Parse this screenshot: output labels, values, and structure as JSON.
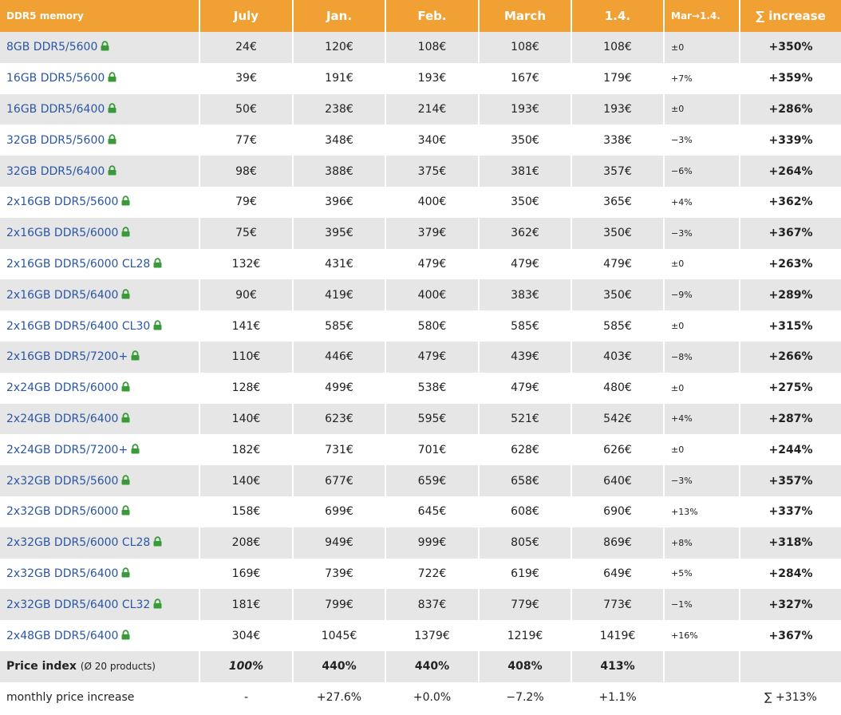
{
  "header": [
    "DDR5 memory",
    "July",
    "Jan.",
    "Feb.",
    "March",
    "1.4.",
    "Mar→1.4.",
    "∑ increase"
  ],
  "rows": [
    [
      "8GB DDR5/5600",
      "24€",
      "120€",
      "108€",
      "108€",
      "108€",
      "±0",
      "+350%"
    ],
    [
      "16GB DDR5/5600",
      "39€",
      "191€",
      "193€",
      "167€",
      "179€",
      "+7%",
      "+359%"
    ],
    [
      "16GB DDR5/6400",
      "50€",
      "238€",
      "214€",
      "193€",
      "193€",
      "±0",
      "+286%"
    ],
    [
      "32GB DDR5/5600",
      "77€",
      "348€",
      "340€",
      "350€",
      "338€",
      "−3%",
      "+339%"
    ],
    [
      "32GB DDR5/6400",
      "98€",
      "388€",
      "375€",
      "381€",
      "357€",
      "−6%",
      "+264%"
    ],
    [
      "2x16GB DDR5/5600",
      "79€",
      "396€",
      "400€",
      "350€",
      "365€",
      "+4%",
      "+362%"
    ],
    [
      "2x16GB DDR5/6000",
      "75€",
      "395€",
      "379€",
      "362€",
      "350€",
      "−3%",
      "+367%"
    ],
    [
      "2x16GB DDR5/6000 CL28",
      "132€",
      "431€",
      "479€",
      "479€",
      "479€",
      "±0",
      "+263%"
    ],
    [
      "2x16GB DDR5/6400",
      "90€",
      "419€",
      "400€",
      "383€",
      "350€",
      "−9%",
      "+289%"
    ],
    [
      "2x16GB DDR5/6400 CL30",
      "141€",
      "585€",
      "580€",
      "585€",
      "585€",
      "±0",
      "+315%"
    ],
    [
      "2x16GB DDR5/7200+",
      "110€",
      "446€",
      "479€",
      "439€",
      "403€",
      "−8%",
      "+266%"
    ],
    [
      "2x24GB DDR5/6000",
      "128€",
      "499€",
      "538€",
      "479€",
      "480€",
      "±0",
      "+275%"
    ],
    [
      "2x24GB DDR5/6400",
      "140€",
      "623€",
      "595€",
      "521€",
      "542€",
      "+4%",
      "+287%"
    ],
    [
      "2x24GB DDR5/7200+",
      "182€",
      "731€",
      "701€",
      "628€",
      "626€",
      "±0",
      "+244%"
    ],
    [
      "2x32GB DDR5/5600",
      "140€",
      "677€",
      "659€",
      "658€",
      "640€",
      "−3%",
      "+357%"
    ],
    [
      "2x32GB DDR5/6000",
      "158€",
      "699€",
      "645€",
      "608€",
      "690€",
      "+13%",
      "+337%"
    ],
    [
      "2x32GB DDR5/6000 CL28",
      "208€",
      "949€",
      "999€",
      "805€",
      "869€",
      "+8%",
      "+318%"
    ],
    [
      "2x32GB DDR5/6400",
      "169€",
      "739€",
      "722€",
      "619€",
      "649€",
      "+5%",
      "+284%"
    ],
    [
      "2x32GB DDR5/6400 CL32",
      "181€",
      "799€",
      "837€",
      "779€",
      "773€",
      "−1%",
      "+327%"
    ],
    [
      "2x48GB DDR5/6400",
      "304€",
      "1045€",
      "1379€",
      "1219€",
      "1419€",
      "+16%",
      "+367%"
    ]
  ],
  "price_index": {
    "label": "Price index",
    "note": "(Ø 20 products)",
    "values": [
      "100%",
      "440%",
      "440%",
      "408%",
      "413%"
    ]
  },
  "monthly": {
    "label": "monthly price increase",
    "values": [
      "-",
      "+27.6%",
      "+0.0%",
      "−7.2%",
      "+1.1%"
    ],
    "total": "∑ +313%"
  }
}
